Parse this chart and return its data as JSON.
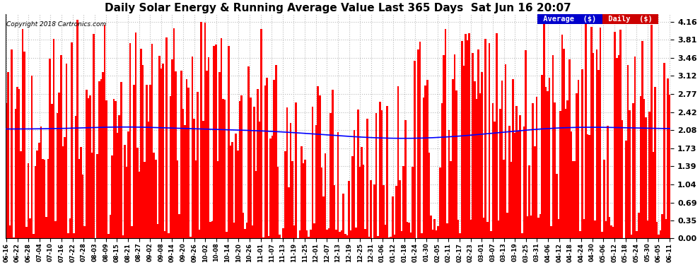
{
  "title": "Daily Solar Energy & Running Average Value Last 365 Days  Sat Jun 16 20:07",
  "copyright": "Copyright 2018 Cartronics.com",
  "yticks": [
    0.0,
    0.35,
    0.69,
    1.04,
    1.39,
    1.73,
    2.08,
    2.42,
    2.77,
    3.12,
    3.46,
    3.81,
    4.16
  ],
  "ymax": 4.3,
  "ymin": 0.0,
  "bar_color": "#ff0000",
  "avg_color": "#0000ff",
  "bg_color": "#ffffff",
  "grid_color": "#bbbbbb",
  "title_fontsize": 11,
  "legend_avg_color": "#0000cc",
  "legend_daily_color": "#cc0000",
  "x_labels": [
    "06-16",
    "06-22",
    "06-28",
    "07-04",
    "07-10",
    "07-16",
    "07-22",
    "07-28",
    "08-03",
    "08-09",
    "08-15",
    "08-21",
    "08-27",
    "09-02",
    "09-08",
    "09-14",
    "09-20",
    "09-26",
    "10-02",
    "10-08",
    "10-14",
    "10-20",
    "10-26",
    "11-01",
    "11-07",
    "11-13",
    "11-19",
    "11-25",
    "12-01",
    "12-07",
    "12-13",
    "12-19",
    "12-25",
    "12-31",
    "01-06",
    "01-12",
    "01-18",
    "01-24",
    "01-30",
    "02-05",
    "02-11",
    "02-17",
    "02-23",
    "03-01",
    "03-07",
    "03-13",
    "03-19",
    "03-25",
    "03-31",
    "04-06",
    "04-12",
    "04-18",
    "04-24",
    "04-30",
    "05-06",
    "05-12",
    "05-18",
    "05-24",
    "05-30",
    "06-05",
    "06-11"
  ],
  "n_bars": 365,
  "figwidth": 9.9,
  "figheight": 3.75,
  "dpi": 100
}
